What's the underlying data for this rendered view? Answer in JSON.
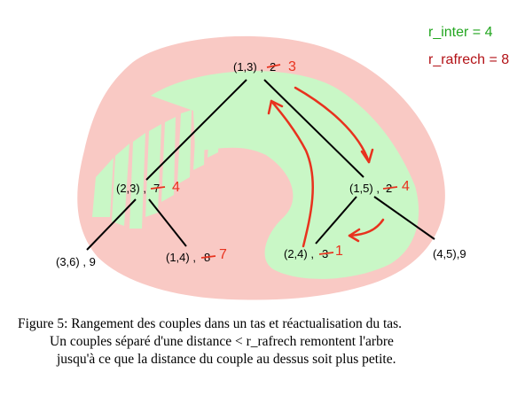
{
  "legend": {
    "r_inter": "r_inter = 4",
    "r_rafrech": "r_rafrech = 8"
  },
  "colors": {
    "pink_region": "#f9c9c4",
    "green_region": "#c9f7c6",
    "red_annotation": "#e8321e",
    "green_text": "#22a61f",
    "dark_red_text": "#b31217"
  },
  "nodes": [
    {
      "id": "n13",
      "label": "(1,3) ,",
      "old": "2",
      "new": "3"
    },
    {
      "id": "n23",
      "label": "(2,3) ,",
      "old": "7",
      "new": "4"
    },
    {
      "id": "n15",
      "label": "(1,5) ,",
      "old": "2",
      "new": "4"
    },
    {
      "id": "n36",
      "label": "(3,6) , 9"
    },
    {
      "id": "n14",
      "label": "(1,4) ,",
      "old": "8",
      "new": "7"
    },
    {
      "id": "n24",
      "label": "(2,4) ,",
      "old": "3",
      "new": "1"
    },
    {
      "id": "n45",
      "label": "(4,5),9"
    }
  ],
  "caption": {
    "line1": "Figure 5: Rangement des couples dans un tas et réactualisation du tas.",
    "line2": "Un couples séparé d'une distance < r_rafrech remontent l'arbre",
    "line3": "jusqu'à ce que  la distance du couple au dessus soit plus petite."
  }
}
